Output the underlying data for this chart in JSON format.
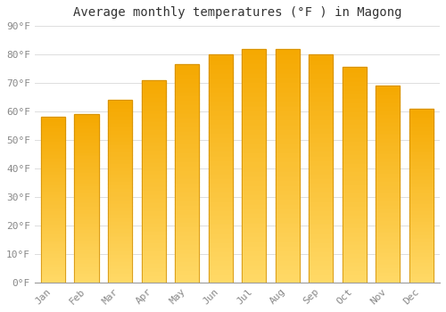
{
  "title": "Average monthly temperatures (°F ) in Magong",
  "months": [
    "Jan",
    "Feb",
    "Mar",
    "Apr",
    "May",
    "Jun",
    "Jul",
    "Aug",
    "Sep",
    "Oct",
    "Nov",
    "Dec"
  ],
  "values": [
    58,
    59,
    64,
    71,
    76.5,
    80,
    82,
    82,
    80,
    75.5,
    69,
    61
  ],
  "bar_color_top": "#F5A800",
  "bar_color_bottom": "#FFD966",
  "bar_edge_color": "#CC8800",
  "ylim": [
    0,
    90
  ],
  "ytick_step": 10,
  "background_color": "#FFFFFF",
  "grid_color": "#DDDDDD",
  "title_fontsize": 10,
  "tick_fontsize": 8,
  "font_family": "monospace"
}
